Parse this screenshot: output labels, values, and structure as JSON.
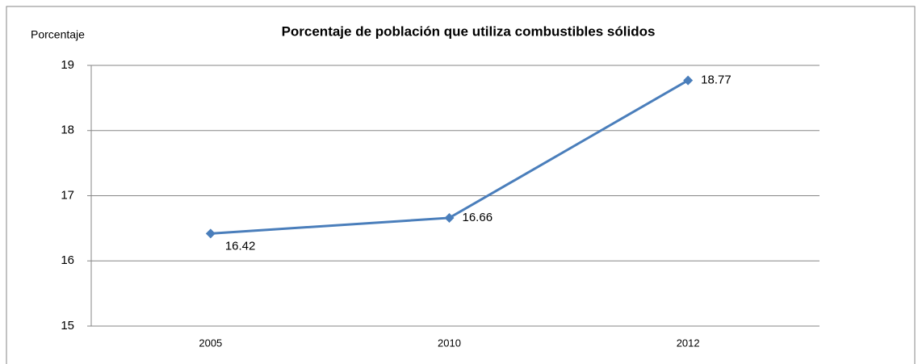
{
  "chart_data": {
    "type": "line",
    "title": "Porcentaje de población que utiliza combustibles sólidos",
    "y_label": "Porcentaje",
    "categories": [
      "2005",
      "2010",
      "2012"
    ],
    "series": [
      {
        "name": "Porcentaje",
        "color": "#4a7ebb",
        "values": [
          16.42,
          16.66,
          18.77
        ]
      }
    ],
    "ylim": [
      15,
      19
    ],
    "yticks": [
      15,
      16,
      17,
      18,
      19
    ],
    "grid": true,
    "legend": false
  }
}
